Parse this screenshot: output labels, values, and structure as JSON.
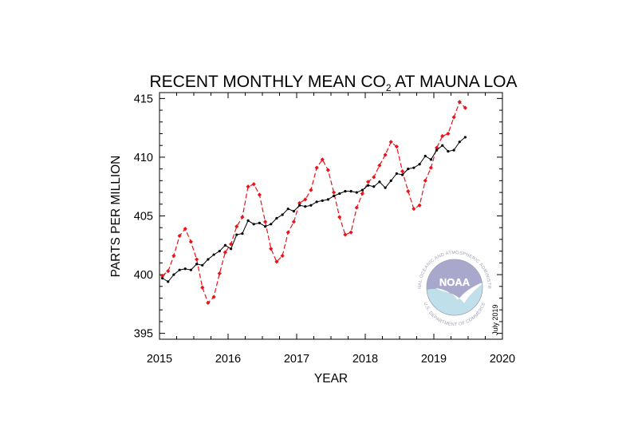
{
  "chart_data": {
    "type": "line",
    "title": "RECENT MONTHLY MEAN CO",
    "title_subscript": "2",
    "title_suffix": " AT MAUNA LOA",
    "xlabel": "YEAR",
    "ylabel": "PARTS PER MILLION",
    "xlim": [
      2015,
      2020
    ],
    "ylim": [
      394.5,
      415.5
    ],
    "xticks": [
      2015,
      2016,
      2017,
      2018,
      2019,
      2020
    ],
    "yticks": [
      395,
      400,
      405,
      410,
      415
    ],
    "grid": false,
    "series": [
      {
        "key": "monthly",
        "color": "#e8141c",
        "style": "dashed",
        "marker": "diamond",
        "x": [
          2015.042,
          2015.125,
          2015.208,
          2015.292,
          2015.375,
          2015.458,
          2015.542,
          2015.625,
          2015.708,
          2015.792,
          2015.875,
          2015.958,
          2016.042,
          2016.125,
          2016.208,
          2016.292,
          2016.375,
          2016.458,
          2016.542,
          2016.625,
          2016.708,
          2016.792,
          2016.875,
          2016.958,
          2017.042,
          2017.125,
          2017.208,
          2017.292,
          2017.375,
          2017.458,
          2017.542,
          2017.625,
          2017.708,
          2017.792,
          2017.875,
          2017.958,
          2018.042,
          2018.125,
          2018.208,
          2018.292,
          2018.375,
          2018.458,
          2018.542,
          2018.625,
          2018.708,
          2018.792,
          2018.875,
          2018.958,
          2019.042,
          2019.125,
          2019.208,
          2019.292,
          2019.375,
          2019.458
        ],
        "y": [
          399.9,
          400.3,
          401.6,
          403.3,
          403.9,
          402.8,
          401.3,
          398.9,
          397.6,
          398.1,
          400.1,
          401.9,
          402.6,
          404.1,
          404.9,
          407.5,
          407.7,
          406.8,
          404.5,
          402.2,
          401.1,
          401.6,
          403.6,
          404.5,
          406.1,
          406.4,
          407.2,
          409.1,
          409.8,
          408.9,
          407.0,
          404.9,
          403.4,
          403.6,
          405.7,
          406.9,
          407.9,
          408.3,
          409.3,
          410.2,
          411.3,
          410.9,
          408.8,
          407.1,
          405.6,
          405.9,
          408.0,
          409.1,
          410.8,
          411.8,
          412.0,
          413.4,
          414.7,
          414.2
        ]
      },
      {
        "key": "trend",
        "color": "#000000",
        "style": "solid",
        "marker": "dot",
        "x": [
          2015.042,
          2015.125,
          2015.208,
          2015.292,
          2015.375,
          2015.458,
          2015.542,
          2015.625,
          2015.708,
          2015.792,
          2015.875,
          2015.958,
          2016.042,
          2016.125,
          2016.208,
          2016.292,
          2016.375,
          2016.458,
          2016.542,
          2016.625,
          2016.708,
          2016.792,
          2016.875,
          2016.958,
          2017.042,
          2017.125,
          2017.208,
          2017.292,
          2017.375,
          2017.458,
          2017.542,
          2017.625,
          2017.708,
          2017.792,
          2017.875,
          2017.958,
          2018.042,
          2018.125,
          2018.208,
          2018.292,
          2018.375,
          2018.458,
          2018.542,
          2018.625,
          2018.708,
          2018.792,
          2018.875,
          2018.958,
          2019.042,
          2019.125,
          2019.208,
          2019.292,
          2019.375,
          2019.458
        ],
        "y": [
          399.7,
          399.4,
          400.0,
          400.4,
          400.5,
          400.4,
          400.9,
          400.8,
          401.3,
          401.7,
          402.0,
          402.5,
          402.2,
          403.4,
          403.5,
          404.6,
          404.3,
          404.4,
          404.1,
          404.3,
          404.8,
          405.1,
          405.6,
          405.4,
          405.9,
          405.8,
          405.9,
          406.2,
          406.3,
          406.4,
          406.7,
          406.9,
          407.1,
          407.1,
          407.0,
          407.2,
          407.6,
          407.5,
          407.9,
          407.4,
          408.0,
          408.6,
          408.5,
          409.0,
          409.1,
          409.4,
          410.1,
          409.8,
          410.6,
          411.0,
          410.5,
          410.6,
          411.3,
          411.7
        ]
      }
    ]
  },
  "note": "July 2019",
  "logo": {
    "name": "NOAA",
    "ring_top": "NATIONAL OCEANIC AND ATMOSPHERIC ADMINISTRATION",
    "ring_bottom": "U.S. DEPARTMENT OF COMMERCE",
    "colors": {
      "upper": "#a8a8cc",
      "lower": "#bfe0ea",
      "bird": "#ffffff"
    }
  }
}
